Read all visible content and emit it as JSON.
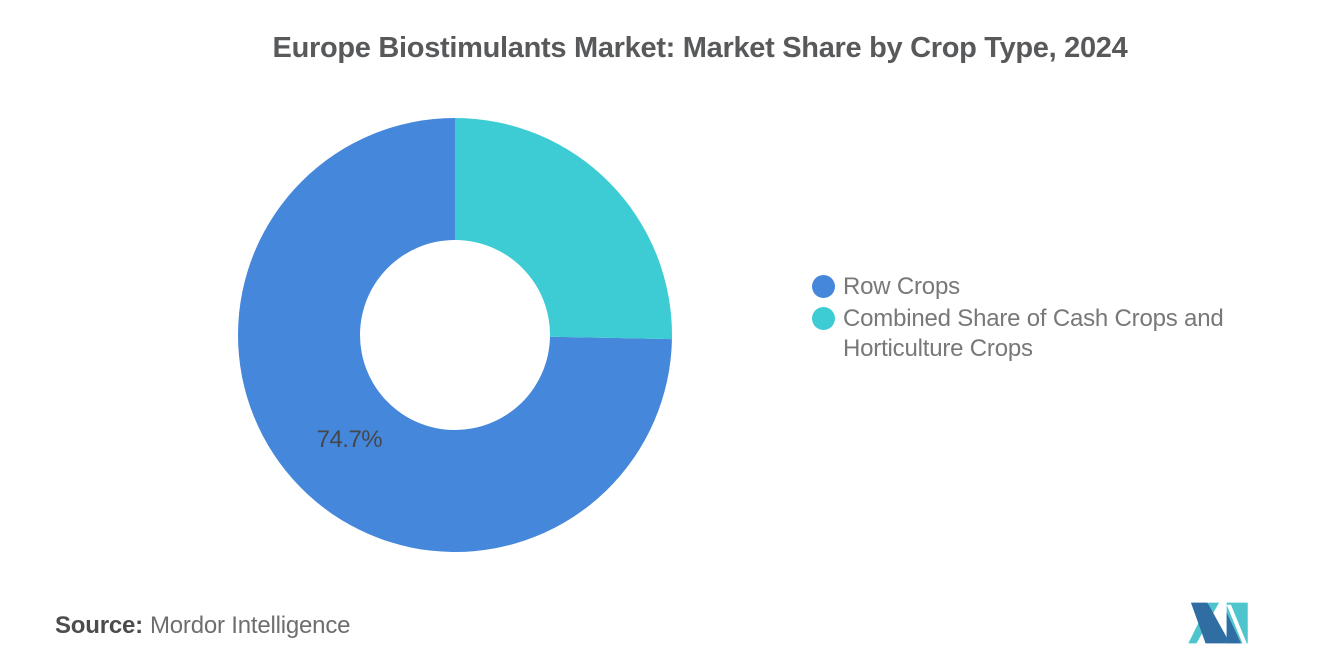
{
  "source": {
    "prefix": "Source:",
    "text": "Mordor Intelligence"
  },
  "logo": {
    "name": "mordor-intelligence-logo",
    "blue": "#2F6DA3",
    "teal": "#4EC5CD"
  },
  "chart_data": {
    "type": "pie",
    "subtype": "donut",
    "title": "Europe Biostimulants Market: Market Share by Crop Type, 2024",
    "series": [
      {
        "name": "Row Crops",
        "value": 74.7,
        "color": "#4587DB",
        "label": "74.7%"
      },
      {
        "name": "Combined Share of Cash Crops and Horticulture Crops",
        "value": 25.3,
        "color": "#3DCCD4",
        "label": ""
      }
    ],
    "start": "top",
    "direction": "counterclockwise",
    "inner_radius_ratio": 0.44,
    "legend_position": "right",
    "label_color": "#44484B",
    "background": "#FFFFFF"
  }
}
